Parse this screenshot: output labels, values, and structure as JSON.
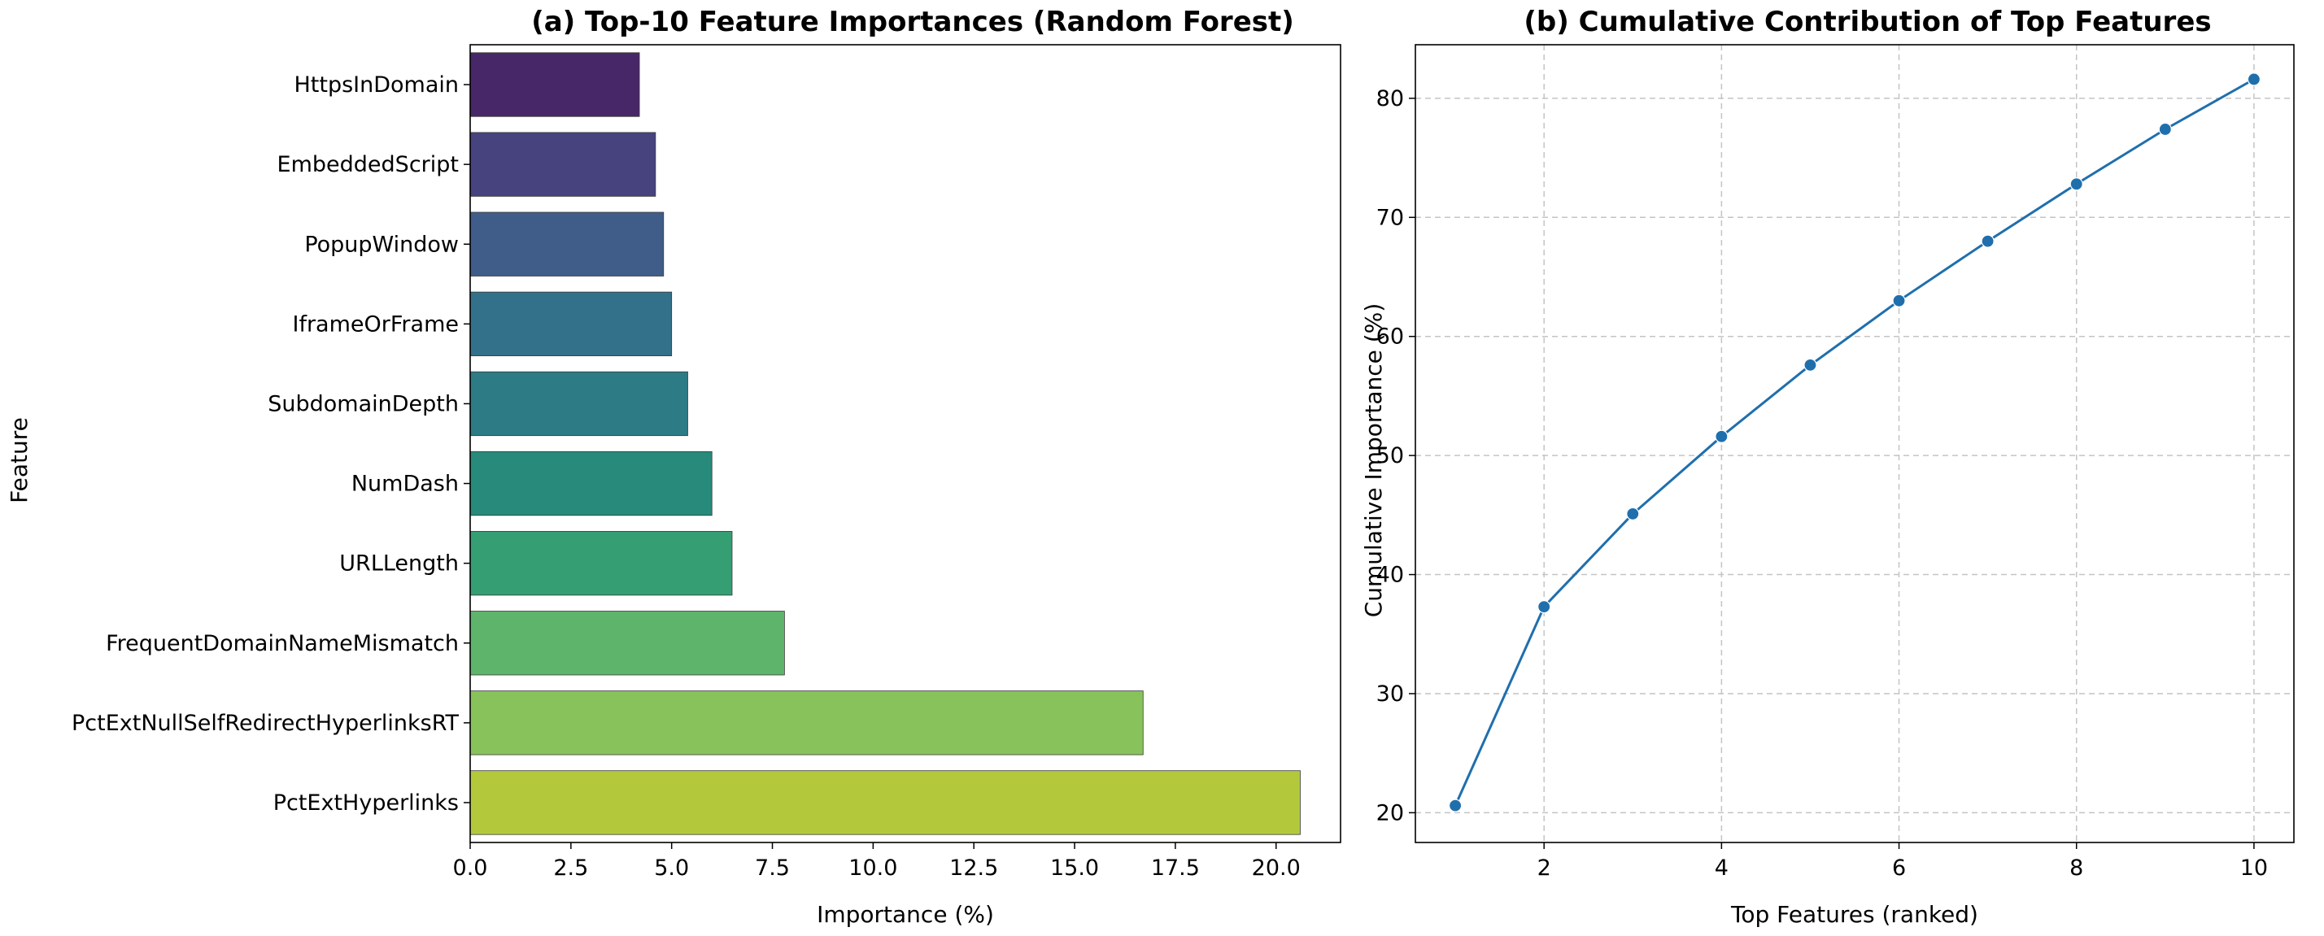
{
  "chart_data": [
    {
      "type": "bar",
      "orientation": "horizontal",
      "title": "(a) Top-10 Feature Importances (Random Forest)",
      "xlabel": "Importance (%)",
      "ylabel": "Feature",
      "categories": [
        "HttpsInDomain",
        "EmbeddedScript",
        "PopupWindow",
        "IframeOrFrame",
        "SubdomainDepth",
        "NumDash",
        "URLLength",
        "FrequentDomainNameMismatch",
        "PctExtNullSelfRedirectHyperlinksRT",
        "PctExtHyperlinks"
      ],
      "values": [
        4.2,
        4.6,
        4.8,
        5.0,
        5.4,
        6.0,
        6.5,
        7.8,
        16.7,
        20.6
      ],
      "colors": [
        "#482768",
        "#46437f",
        "#3f5d88",
        "#33708a",
        "#2c7b85",
        "#278a7b",
        "#359e72",
        "#5eb46b",
        "#88c25b",
        "#b3c93b"
      ],
      "xlim": [
        0,
        21.6
      ],
      "xticks": [
        "0.0",
        "2.5",
        "5.0",
        "7.5",
        "10.0",
        "12.5",
        "15.0",
        "17.5",
        "20.0"
      ],
      "grid": false
    },
    {
      "type": "line",
      "title": "(b) Cumulative Contribution of Top Features",
      "xlabel": "Top Features (ranked)",
      "ylabel": "Cumulative Importance (%)",
      "x": [
        1,
        2,
        3,
        4,
        5,
        6,
        7,
        8,
        9,
        10
      ],
      "y": [
        20.6,
        37.3,
        45.1,
        51.6,
        57.6,
        63.0,
        68.0,
        72.8,
        77.4,
        81.6
      ],
      "xlim": [
        0.55,
        10.45
      ],
      "ylim": [
        17.5,
        84.5
      ],
      "xticks": [
        "2",
        "4",
        "6",
        "8",
        "10"
      ],
      "yticks": [
        "20",
        "30",
        "40",
        "50",
        "60",
        "70",
        "80"
      ],
      "color": "#1f6fad",
      "marker": "circle",
      "grid": true
    }
  ]
}
